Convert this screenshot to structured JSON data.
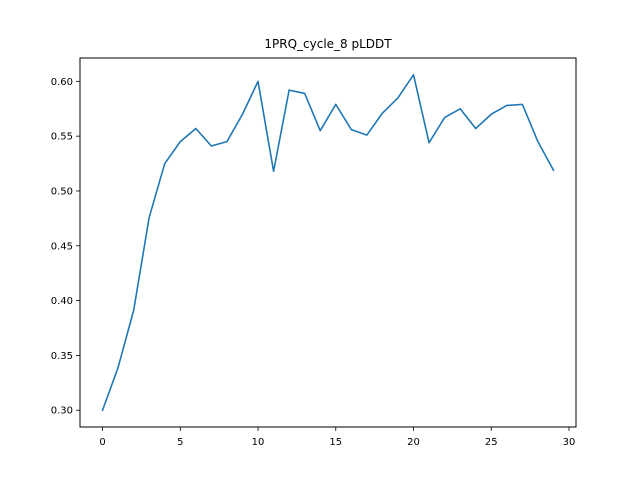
{
  "chart_data": {
    "type": "line",
    "title": "1PRQ_cycle_8 pLDDT",
    "xlabel": "",
    "ylabel": "",
    "x": [
      0,
      1,
      2,
      3,
      4,
      5,
      6,
      7,
      8,
      9,
      10,
      11,
      12,
      13,
      14,
      15,
      16,
      17,
      18,
      19,
      20,
      21,
      22,
      23,
      24,
      25,
      26,
      27,
      28,
      29
    ],
    "series": [
      {
        "values": [
          0.3,
          0.339,
          0.391,
          0.476,
          0.525,
          0.545,
          0.557,
          0.541,
          0.545,
          0.57,
          0.6,
          0.518,
          0.592,
          0.589,
          0.555,
          0.579,
          0.556,
          0.551,
          0.571,
          0.585,
          0.606,
          0.544,
          0.567,
          0.575,
          0.557,
          0.57,
          0.578,
          0.579,
          0.545,
          0.519
        ],
        "color": "#1f77b4"
      }
    ],
    "xlim": [
      -1.45,
      30.45
    ],
    "ylim": [
      0.2847,
      0.6213
    ],
    "xticks": [
      0,
      5,
      10,
      15,
      20,
      25,
      30
    ],
    "xtick_labels": [
      "0",
      "5",
      "10",
      "15",
      "20",
      "25",
      "30"
    ],
    "yticks": [
      0.3,
      0.35,
      0.4,
      0.45,
      0.5,
      0.55,
      0.6
    ],
    "ytick_labels": [
      "0.30",
      "0.35",
      "0.40",
      "0.45",
      "0.50",
      "0.55",
      "0.60"
    ],
    "grid": false,
    "legend": "none"
  }
}
